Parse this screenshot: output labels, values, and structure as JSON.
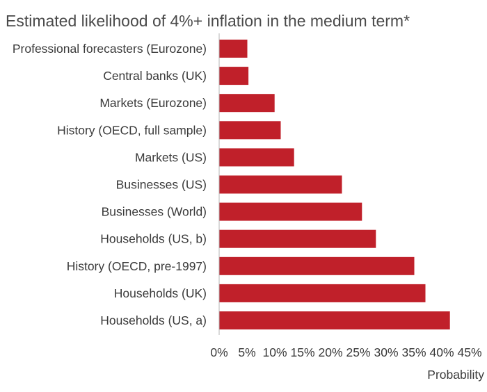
{
  "chart_data": {
    "type": "bar",
    "orientation": "horizontal",
    "title": "Estimated likelihood of 4%+ inflation in the medium term*",
    "xlabel": "Probability",
    "ylabel": "",
    "categories": [
      "Professional forecasters (Eurozone)",
      "Central banks (UK)",
      "Markets (Eurozone)",
      "History (OECD, full sample)",
      "Markets (US)",
      "Businesses (US)",
      "Businesses (World)",
      "Households (US, b)",
      "History (OECD, pre-1997)",
      "Households (UK)",
      "Households (US, a)"
    ],
    "values": [
      5,
      5.2,
      9.9,
      11,
      13.4,
      22,
      25.6,
      28.1,
      35,
      37,
      41.4
    ],
    "xlim": [
      0,
      45
    ],
    "xticks": [
      "0%",
      "5%",
      "10%",
      "15%",
      "20%",
      "25%",
      "30%",
      "35%",
      "40%",
      "45%"
    ],
    "bar_color": "#c0202a",
    "grid": false,
    "legend": "none"
  }
}
